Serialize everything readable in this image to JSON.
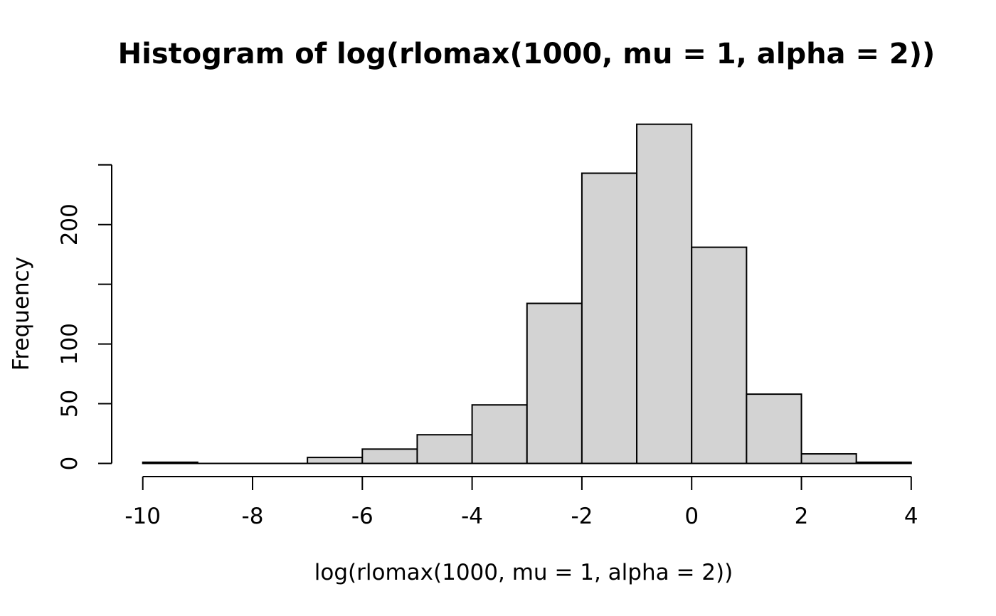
{
  "chart_data": {
    "type": "bar",
    "subtype": "histogram",
    "title": "Histogram of log(rlomax(1000, mu = 1, alpha = 2))",
    "xlabel": "log(rlomax(1000, mu = 1, alpha = 2))",
    "ylabel": "Frequency",
    "n": 1000,
    "bin_width": 1,
    "bin_edges": [
      -10,
      -9,
      -8,
      -7,
      -6,
      -5,
      -4,
      -3,
      -2,
      -1,
      0,
      1,
      2,
      3,
      4
    ],
    "counts": [
      1,
      0,
      0,
      5,
      12,
      24,
      49,
      134,
      243,
      284,
      181,
      58,
      8,
      1
    ],
    "x_tick_values": [
      -10,
      -8,
      -6,
      -4,
      -2,
      0,
      2,
      4
    ],
    "x_tick_labels": [
      "-10",
      "-8",
      "-6",
      "-4",
      "-2",
      "0",
      "2",
      "4"
    ],
    "y_tick_values": [
      0,
      50,
      100,
      150,
      200,
      250
    ],
    "y_tick_labels": [
      "0",
      "50",
      "100",
      "",
      "200",
      ""
    ],
    "xlim": [
      -10,
      4
    ],
    "ylim": [
      0,
      250
    ],
    "grid": false,
    "legend": "none",
    "bar_fill": "#d3d3d3",
    "bar_stroke": "#000000",
    "axis_color": "#000000",
    "text_color": "#000000",
    "background": "#ffffff"
  }
}
